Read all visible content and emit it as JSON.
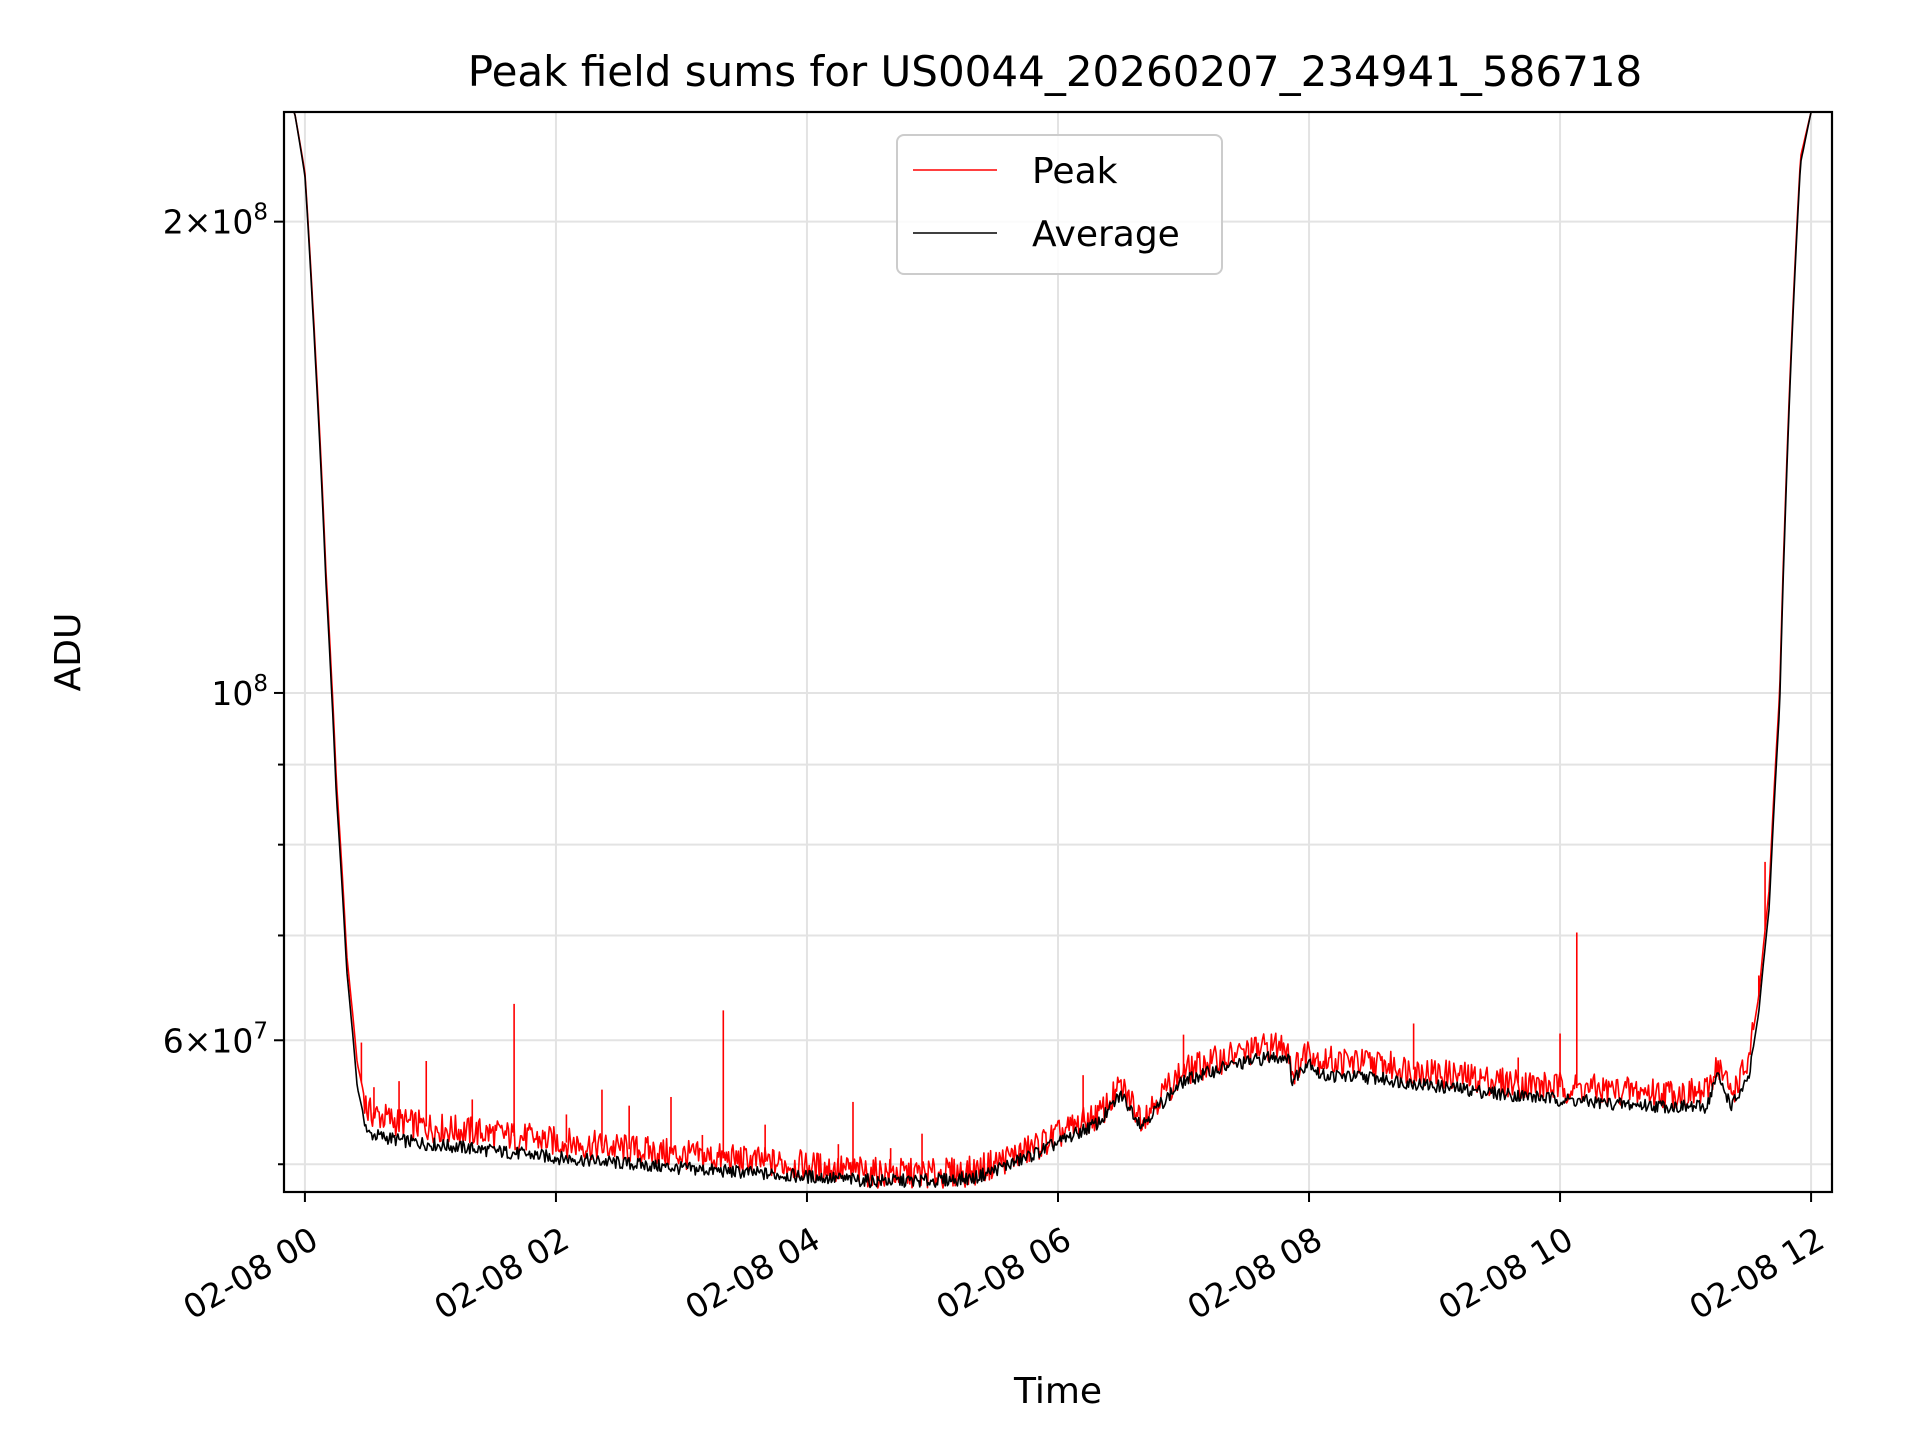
{
  "chart_data": {
    "type": "line",
    "title": "Peak field sums for US0044_20260207_234941_586718",
    "xlabel": "Time",
    "ylabel": "ADU",
    "x_range": [
      "02-07 23:50",
      "02-08 12:10"
    ],
    "y_range": [
      48000000,
      235000000
    ],
    "y_scale": "log",
    "grid": true,
    "legend_position": "upper-center",
    "x_ticks": [
      {
        "t": "02-08 00:00",
        "label": "02-08 00"
      },
      {
        "t": "02-08 02:00",
        "label": "02-08 02"
      },
      {
        "t": "02-08 04:00",
        "label": "02-08 04"
      },
      {
        "t": "02-08 06:00",
        "label": "02-08 06"
      },
      {
        "t": "02-08 08:00",
        "label": "02-08 08"
      },
      {
        "t": "02-08 10:00",
        "label": "02-08 10"
      },
      {
        "t": "02-08 12:00",
        "label": "02-08 12"
      }
    ],
    "y_major_ticks": [
      {
        "value": 200000000,
        "base": "2",
        "exp": "8",
        "mult": true
      },
      {
        "value": 100000000,
        "base": "10",
        "exp": "8",
        "mult": false
      },
      {
        "value": 60000000,
        "base": "6",
        "exp": "7",
        "mult": true
      }
    ],
    "y_minor_ticks": [
      50000000,
      70000000,
      80000000,
      90000000
    ],
    "series": [
      {
        "name": "Peak",
        "color": "#ff0000",
        "points": [
          [
            "02-07 23:50",
            235000000
          ],
          [
            "02-07 23:55",
            235000000
          ],
          [
            "02-08 00:00",
            215000000
          ],
          [
            "02-08 00:05",
            165000000
          ],
          [
            "02-08 00:10",
            120000000
          ],
          [
            "02-08 00:15",
            88000000
          ],
          [
            "02-08 00:20",
            68000000
          ],
          [
            "02-08 00:25",
            58000000
          ],
          [
            "02-08 00:30",
            54000000
          ],
          [
            "02-08 00:45",
            53200000
          ],
          [
            "02-08 01:00",
            52800000
          ],
          [
            "02-08 01:30",
            52300000
          ],
          [
            "02-08 02:00",
            51700000
          ],
          [
            "02-08 02:30",
            51200000
          ],
          [
            "02-08 03:00",
            50700000
          ],
          [
            "02-08 03:30",
            50300000
          ],
          [
            "02-08 04:00",
            49900000
          ],
          [
            "02-08 04:30",
            49400000
          ],
          [
            "02-08 05:00",
            49300000
          ],
          [
            "02-08 05:20",
            49500000
          ],
          [
            "02-08 05:45",
            51000000
          ],
          [
            "02-08 06:00",
            52200000
          ],
          [
            "02-08 06:20",
            53800000
          ],
          [
            "02-08 06:30",
            56000000
          ],
          [
            "02-08 06:40",
            53600000
          ],
          [
            "02-08 06:50",
            55500000
          ],
          [
            "02-08 07:00",
            57300000
          ],
          [
            "02-08 07:20",
            58500000
          ],
          [
            "02-08 07:40",
            59400000
          ],
          [
            "02-08 07:50",
            59600000
          ],
          [
            "02-08 07:52",
            57200000
          ],
          [
            "02-08 08:00",
            59300000
          ],
          [
            "02-08 08:05",
            58300000
          ],
          [
            "02-08 08:30",
            58000000
          ],
          [
            "02-08 09:00",
            57200000
          ],
          [
            "02-08 09:30",
            56500000
          ],
          [
            "02-08 10:00",
            56000000
          ],
          [
            "02-08 10:30",
            55700000
          ],
          [
            "02-08 11:00",
            55500000
          ],
          [
            "02-08 11:10",
            55500000
          ],
          [
            "02-08 11:15",
            58000000
          ],
          [
            "02-08 11:22",
            55500000
          ],
          [
            "02-08 11:30",
            58000000
          ],
          [
            "02-08 11:35",
            64000000
          ],
          [
            "02-08 11:40",
            75000000
          ],
          [
            "02-08 11:45",
            100000000
          ],
          [
            "02-08 11:50",
            160000000
          ],
          [
            "02-08 11:55",
            220000000
          ],
          [
            "02-08 12:00",
            235000000
          ],
          [
            "02-08 12:10",
            235000000
          ]
        ],
        "spikes": [
          [
            "02-08 00:27",
            59800000
          ],
          [
            "02-08 00:33",
            56000000
          ],
          [
            "02-08 00:45",
            56500000
          ],
          [
            "02-08 00:58",
            58200000
          ],
          [
            "02-08 01:20",
            55000000
          ],
          [
            "02-08 01:40",
            63300000
          ],
          [
            "02-08 02:05",
            53800000
          ],
          [
            "02-08 02:22",
            55800000
          ],
          [
            "02-08 02:35",
            54500000
          ],
          [
            "02-08 02:55",
            55200000
          ],
          [
            "02-08 03:10",
            52200000
          ],
          [
            "02-08 03:20",
            62700000
          ],
          [
            "02-08 03:40",
            53000000
          ],
          [
            "02-08 04:15",
            51500000
          ],
          [
            "02-08 04:22",
            54800000
          ],
          [
            "02-08 04:40",
            51200000
          ],
          [
            "02-08 04:55",
            52300000
          ],
          [
            "02-08 06:12",
            57000000
          ],
          [
            "02-08 07:00",
            60500000
          ],
          [
            "02-08 08:50",
            61500000
          ],
          [
            "02-08 09:40",
            58500000
          ],
          [
            "02-08 10:00",
            60600000
          ],
          [
            "02-08 10:08",
            70300000
          ],
          [
            "02-08 11:35",
            66000000
          ],
          [
            "02-08 11:38",
            78000000
          ]
        ]
      },
      {
        "name": "Average",
        "color": "#000000",
        "points": [
          [
            "02-07 23:50",
            235000000
          ],
          [
            "02-07 23:55",
            235000000
          ],
          [
            "02-08 00:00",
            214000000
          ],
          [
            "02-08 00:05",
            163000000
          ],
          [
            "02-08 00:10",
            118000000
          ],
          [
            "02-08 00:15",
            86000000
          ],
          [
            "02-08 00:20",
            66500000
          ],
          [
            "02-08 00:25",
            56000000
          ],
          [
            "02-08 00:30",
            52300000
          ],
          [
            "02-08 00:45",
            51800000
          ],
          [
            "02-08 01:00",
            51500000
          ],
          [
            "02-08 01:30",
            51000000
          ],
          [
            "02-08 02:00",
            50500000
          ],
          [
            "02-08 02:30",
            50100000
          ],
          [
            "02-08 03:00",
            49700000
          ],
          [
            "02-08 03:30",
            49400000
          ],
          [
            "02-08 04:00",
            49100000
          ],
          [
            "02-08 04:30",
            48800000
          ],
          [
            "02-08 05:00",
            48800000
          ],
          [
            "02-08 05:20",
            49000000
          ],
          [
            "02-08 05:45",
            50500000
          ],
          [
            "02-08 06:00",
            51600000
          ],
          [
            "02-08 06:20",
            53200000
          ],
          [
            "02-08 06:30",
            55400000
          ],
          [
            "02-08 06:40",
            53000000
          ],
          [
            "02-08 06:50",
            54800000
          ],
          [
            "02-08 07:00",
            56500000
          ],
          [
            "02-08 07:20",
            57700000
          ],
          [
            "02-08 07:40",
            58500000
          ],
          [
            "02-08 07:50",
            58600000
          ],
          [
            "02-08 07:52",
            56500000
          ],
          [
            "02-08 08:00",
            58300000
          ],
          [
            "02-08 08:05",
            57000000
          ],
          [
            "02-08 08:30",
            56800000
          ],
          [
            "02-08 09:00",
            56100000
          ],
          [
            "02-08 09:30",
            55500000
          ],
          [
            "02-08 10:00",
            55000000
          ],
          [
            "02-08 10:30",
            54600000
          ],
          [
            "02-08 11:00",
            54400000
          ],
          [
            "02-08 11:10",
            54400000
          ],
          [
            "02-08 11:15",
            57000000
          ],
          [
            "02-08 11:22",
            54500000
          ],
          [
            "02-08 11:30",
            56500000
          ],
          [
            "02-08 11:35",
            62500000
          ],
          [
            "02-08 11:40",
            73000000
          ],
          [
            "02-08 11:45",
            98000000
          ],
          [
            "02-08 11:50",
            158000000
          ],
          [
            "02-08 11:55",
            218000000
          ],
          [
            "02-08 12:00",
            235000000
          ],
          [
            "02-08 12:10",
            235000000
          ]
        ]
      }
    ]
  }
}
